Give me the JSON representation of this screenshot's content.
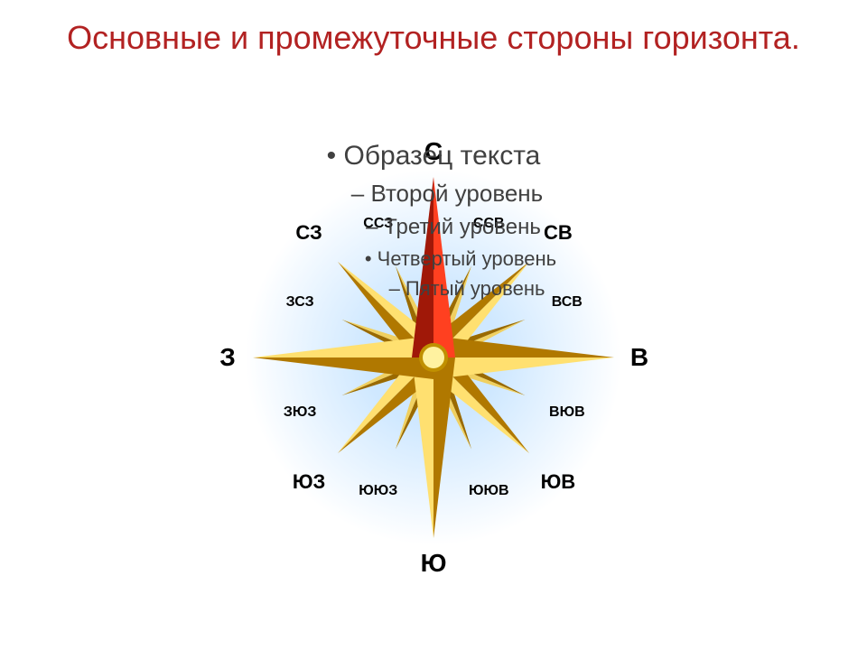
{
  "title": {
    "text": "Основные и промежуточные стороны горизонта.",
    "color": "#b22222",
    "fontsize": 36
  },
  "bullets": {
    "color": "#404040",
    "items": [
      {
        "marker": "•",
        "text": "Образец текста",
        "fontsize": 30,
        "indent": 0
      },
      {
        "marker": "–",
        "text": "Второй уровень",
        "fontsize": 26,
        "indent": 30
      },
      {
        "marker": "–",
        "text": "Третий уровень",
        "fontsize": 24,
        "indent": 44
      },
      {
        "marker": "•",
        "text": "Четвертый уровень",
        "fontsize": 22,
        "indent": 60
      },
      {
        "marker": "–",
        "text": "Пятый уровень",
        "fontsize": 22,
        "indent": 74
      }
    ]
  },
  "compass": {
    "size": 420,
    "glow_inner": "#cfe8ff",
    "glow_outer": "#ffffff00",
    "background": "#ffffff",
    "cardinal_length": 200,
    "ordinal_length": 150,
    "half_length": 110,
    "colors": {
      "north_light": "#ff4020",
      "north_dark": "#a01808",
      "gold_light": "#ffe070",
      "gold_dark": "#b07800",
      "half_light": "#f0d060",
      "half_dark": "#9a6a00",
      "hub_light": "#fff2a0",
      "hub_dark": "#c09000"
    },
    "labels": [
      {
        "text": "С",
        "angle": 0,
        "r": 228,
        "fontsize": 28,
        "weight": "bold"
      },
      {
        "text": "В",
        "angle": 90,
        "r": 228,
        "fontsize": 28,
        "weight": "bold"
      },
      {
        "text": "Ю",
        "angle": 180,
        "r": 228,
        "fontsize": 28,
        "weight": "bold"
      },
      {
        "text": "З",
        "angle": 270,
        "r": 228,
        "fontsize": 28,
        "weight": "bold"
      },
      {
        "text": "СВ",
        "angle": 45,
        "r": 195,
        "fontsize": 22,
        "weight": "bold"
      },
      {
        "text": "ЮВ",
        "angle": 135,
        "r": 195,
        "fontsize": 22,
        "weight": "bold"
      },
      {
        "text": "ЮЗ",
        "angle": 225,
        "r": 195,
        "fontsize": 22,
        "weight": "bold"
      },
      {
        "text": "СЗ",
        "angle": 315,
        "r": 195,
        "fontsize": 22,
        "weight": "bold"
      },
      {
        "text": "ССВ",
        "angle": 22.5,
        "r": 160,
        "fontsize": 16,
        "weight": "bold"
      },
      {
        "text": "ВСВ",
        "angle": 67.5,
        "r": 160,
        "fontsize": 16,
        "weight": "bold"
      },
      {
        "text": "ВЮВ",
        "angle": 112.5,
        "r": 160,
        "fontsize": 16,
        "weight": "bold"
      },
      {
        "text": "ЮЮВ",
        "angle": 157.5,
        "r": 160,
        "fontsize": 16,
        "weight": "bold"
      },
      {
        "text": "ЮЮЗ",
        "angle": 202.5,
        "r": 160,
        "fontsize": 16,
        "weight": "bold"
      },
      {
        "text": "ЗЮЗ",
        "angle": 247.5,
        "r": 160,
        "fontsize": 16,
        "weight": "bold"
      },
      {
        "text": "ЗСЗ",
        "angle": 292.5,
        "r": 160,
        "fontsize": 16,
        "weight": "bold"
      },
      {
        "text": "ССЗ",
        "angle": 337.5,
        "r": 160,
        "fontsize": 16,
        "weight": "bold"
      }
    ]
  }
}
